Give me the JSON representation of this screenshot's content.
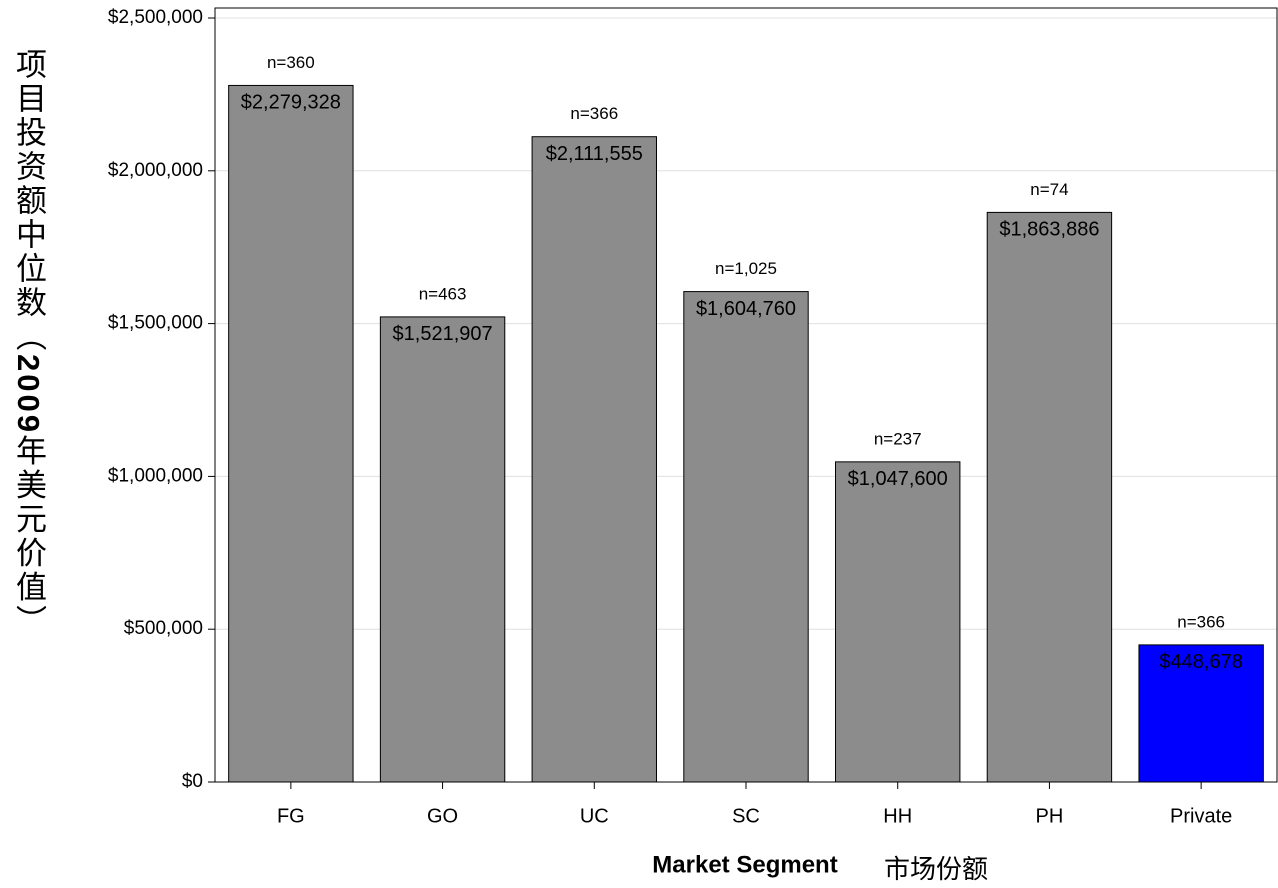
{
  "chart_data": {
    "type": "bar",
    "categories": [
      "FG",
      "GO",
      "UC",
      "SC",
      "HH",
      "PH",
      "Private"
    ],
    "values": [
      2279328,
      1521907,
      2111555,
      1604760,
      1047600,
      1863886,
      448678
    ],
    "value_labels": [
      "$2,279,328",
      "$1,521,907",
      "$2,111,555",
      "$1,604,760",
      "$1,047,600",
      "$1,863,886",
      "$448,678"
    ],
    "annotations": [
      "n=360",
      "n=463",
      "n=366",
      "n=1,025",
      "n=237",
      "n=74",
      "n=366"
    ],
    "colors": [
      "#8c8c8c",
      "#8c8c8c",
      "#8c8c8c",
      "#8c8c8c",
      "#8c8c8c",
      "#8c8c8c",
      "#0000ff"
    ],
    "ylim": [
      0,
      2500000
    ],
    "yticks": [
      {
        "value": 0,
        "label": "$0"
      },
      {
        "value": 500000,
        "label": "$500,000"
      },
      {
        "value": 1000000,
        "label": "$1,000,000"
      },
      {
        "value": 1500000,
        "label": "$1,500,000"
      },
      {
        "value": 2000000,
        "label": "$2,000,000"
      },
      {
        "value": 2500000,
        "label": "$2,500,000"
      }
    ],
    "grid": true,
    "x_label": [
      "Market Segment",
      "市场份额"
    ],
    "y_label": [
      "项目投资额中位数（",
      "2009",
      "年美元价值）"
    ]
  }
}
